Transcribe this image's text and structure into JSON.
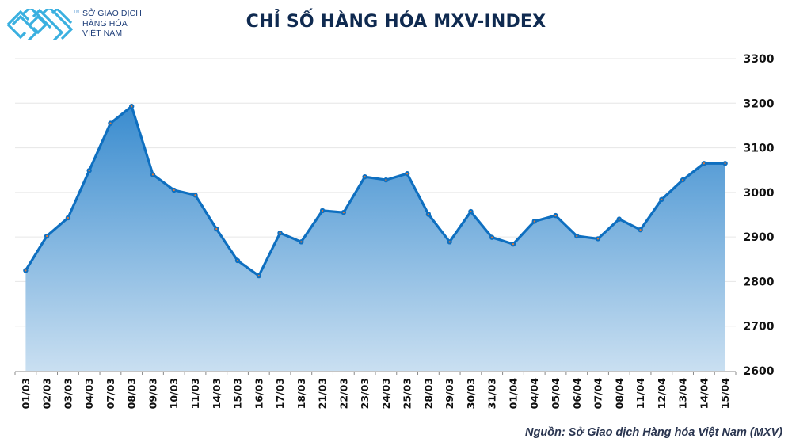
{
  "logo": {
    "tm": "TM",
    "lines": [
      "SỞ GIAO DỊCH",
      "HÀNG HÓA",
      "VIỆT NAM"
    ]
  },
  "title": "CHỈ SỐ HÀNG HÓA MXV-INDEX",
  "source": "Nguồn: Sở Giao dịch Hàng hóa Việt Nam (MXV)",
  "colors": {
    "line": "#0e6fc0",
    "fill_top": "#3a8ccf",
    "fill_bottom": "#c9dff1",
    "marker_center": "#e07b39",
    "gridline": "#e6e6e6",
    "title": "#0f2a50"
  },
  "chart_data": {
    "type": "area",
    "title": "CHỈ SỐ HÀNG HÓA MXV-INDEX",
    "xlabel": "",
    "ylabel": "",
    "ylim": [
      2600,
      3300
    ],
    "yticks": [
      2600,
      2700,
      2800,
      2900,
      3000,
      3100,
      3200,
      3300
    ],
    "y_axis_position": "right",
    "grid": true,
    "legend": null,
    "categories": [
      "01/03",
      "02/03",
      "03/03",
      "04/03",
      "07/03",
      "08/03",
      "09/03",
      "10/03",
      "11/03",
      "14/03",
      "15/03",
      "16/03",
      "17/03",
      "18/03",
      "21/03",
      "22/03",
      "23/03",
      "24/03",
      "25/03",
      "28/03",
      "29/03",
      "30/03",
      "31/03",
      "01/04",
      "04/04",
      "05/04",
      "06/04",
      "07/04",
      "08/04",
      "11/04",
      "12/04",
      "13/04",
      "14/04",
      "15/04"
    ],
    "series": [
      {
        "name": "MXV-Index",
        "values": [
          2825,
          2902,
          2943,
          3049,
          3155,
          3193,
          3040,
          3005,
          2994,
          2918,
          2847,
          2813,
          2909,
          2889,
          2959,
          2955,
          3035,
          3028,
          3042,
          2951,
          2889,
          2957,
          2899,
          2884,
          2935,
          2948,
          2902,
          2896,
          2940,
          2916,
          2984,
          3028,
          3065,
          3065
        ]
      }
    ],
    "annotations": [
      "Nguồn: Sở Giao dịch Hàng hóa Việt Nam (MXV)"
    ]
  }
}
